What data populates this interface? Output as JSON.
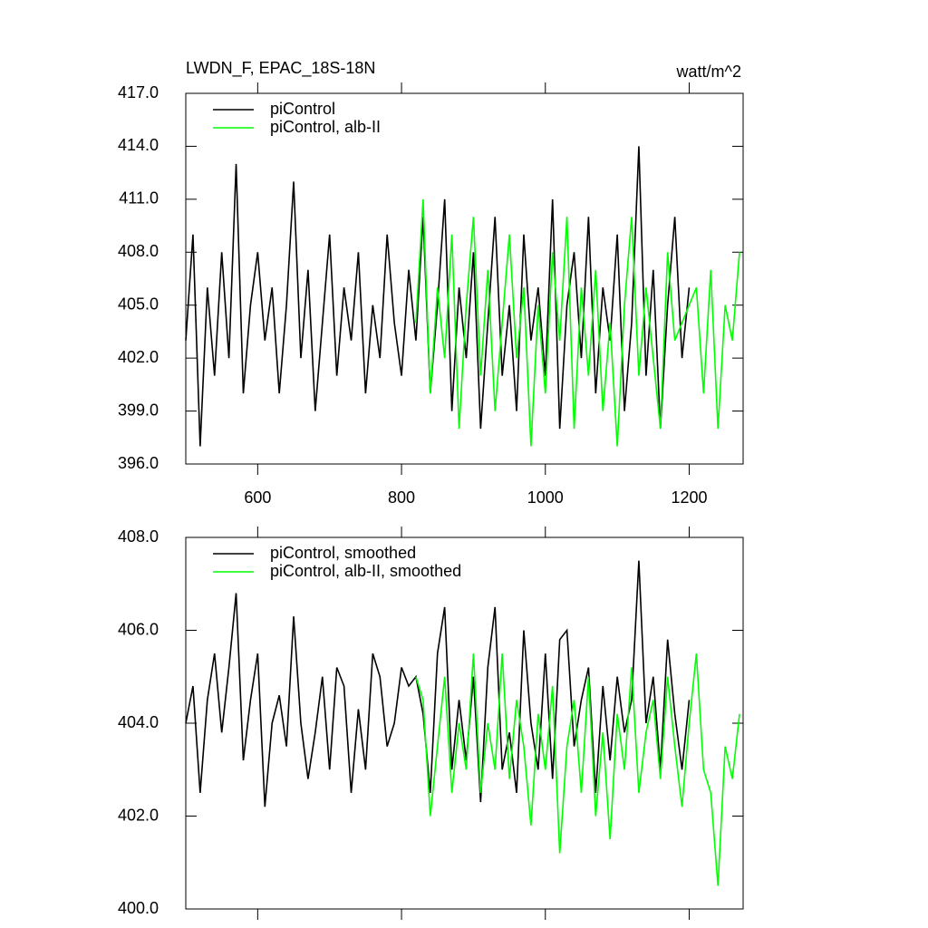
{
  "chart_data": [
    {
      "type": "line",
      "title": "LWDN_F, EPAC_18S-18N",
      "units": "watt/m^2",
      "x": [
        500,
        510,
        520,
        530,
        540,
        550,
        560,
        570,
        580,
        590,
        600,
        610,
        620,
        630,
        640,
        650,
        660,
        670,
        680,
        690,
        700,
        710,
        720,
        730,
        740,
        750,
        760,
        770,
        780,
        790,
        800,
        810,
        820,
        830,
        840,
        850,
        860,
        870,
        880,
        890,
        900,
        910,
        920,
        930,
        940,
        950,
        960,
        970,
        980,
        990,
        1000,
        1010,
        1020,
        1030,
        1040,
        1050,
        1060,
        1070,
        1080,
        1090,
        1100,
        1110,
        1120,
        1130,
        1140,
        1150,
        1160,
        1170,
        1180,
        1190,
        1200,
        1210,
        1220,
        1230,
        1240,
        1250,
        1260,
        1270
      ],
      "series": [
        {
          "name": "piControl",
          "color": "#000000",
          "values": [
            403,
            409,
            397,
            406,
            401,
            408,
            402,
            413,
            400,
            405,
            408,
            403,
            406,
            400,
            405,
            412,
            402,
            407,
            399,
            404,
            409,
            401,
            406,
            403,
            408,
            400,
            405,
            402,
            409,
            404,
            401,
            407,
            403,
            410,
            400,
            405,
            411,
            399,
            406,
            402,
            408,
            398,
            404,
            410,
            401,
            405,
            399,
            409,
            403,
            406,
            401,
            411,
            398,
            405,
            408,
            402,
            410,
            400,
            406,
            403,
            409,
            399,
            404,
            414,
            401,
            407,
            398,
            405,
            410,
            402,
            406,
            null,
            null,
            null,
            null,
            null,
            null,
            null
          ]
        },
        {
          "name": "piControl, alb-II",
          "color": "#00ff00",
          "values": [
            null,
            null,
            null,
            null,
            null,
            null,
            null,
            null,
            null,
            null,
            null,
            null,
            null,
            null,
            null,
            null,
            null,
            null,
            null,
            null,
            null,
            null,
            null,
            null,
            null,
            null,
            null,
            null,
            null,
            null,
            null,
            null,
            404,
            411,
            400,
            406,
            402,
            409,
            398,
            405,
            410,
            401,
            407,
            399,
            404,
            409,
            402,
            406,
            397,
            405,
            400,
            408,
            403,
            410,
            398,
            406,
            401,
            407,
            399,
            404,
            397,
            405,
            410,
            401,
            406,
            402,
            398,
            408,
            403,
            404,
            405,
            406,
            400,
            407,
            398,
            405,
            403,
            408
          ]
        }
      ],
      "xlim": [
        500,
        1275
      ],
      "xticks": [
        600,
        800,
        1000,
        1200
      ],
      "ylim": [
        396,
        417
      ],
      "yticks": [
        {
          "value": 396,
          "label": "396.0"
        },
        {
          "value": 399,
          "label": "399.0"
        },
        {
          "value": 402,
          "label": "402.0"
        },
        {
          "value": 405,
          "label": "405.0"
        },
        {
          "value": 408,
          "label": "408.0"
        },
        {
          "value": 411,
          "label": "411.0"
        },
        {
          "value": 414,
          "label": "414.0"
        },
        {
          "value": 417,
          "label": "417.0"
        }
      ]
    },
    {
      "type": "line",
      "x": [
        500,
        510,
        520,
        530,
        540,
        550,
        560,
        570,
        580,
        590,
        600,
        610,
        620,
        630,
        640,
        650,
        660,
        670,
        680,
        690,
        700,
        710,
        720,
        730,
        740,
        750,
        760,
        770,
        780,
        790,
        800,
        810,
        820,
        830,
        840,
        850,
        860,
        870,
        880,
        890,
        900,
        910,
        920,
        930,
        940,
        950,
        960,
        970,
        980,
        990,
        1000,
        1010,
        1020,
        1030,
        1040,
        1050,
        1060,
        1070,
        1080,
        1090,
        1100,
        1110,
        1120,
        1130,
        1140,
        1150,
        1160,
        1170,
        1180,
        1190,
        1200,
        1210,
        1220,
        1230,
        1240,
        1250,
        1260,
        1270
      ],
      "series": [
        {
          "name": "piControl, smoothed",
          "color": "#000000",
          "values": [
            404.0,
            404.8,
            402.5,
            404.5,
            405.5,
            403.8,
            405.2,
            406.8,
            403.2,
            404.5,
            405.5,
            402.2,
            404.0,
            404.6,
            403.5,
            406.3,
            404.0,
            402.8,
            403.8,
            405.0,
            403.0,
            405.2,
            404.8,
            402.5,
            404.3,
            403.0,
            405.5,
            405.0,
            403.5,
            404.0,
            405.2,
            404.8,
            405.0,
            404.2,
            402.5,
            405.5,
            406.5,
            403.0,
            404.5,
            403.2,
            405.0,
            402.3,
            405.2,
            406.5,
            403.0,
            403.8,
            402.5,
            406.0,
            404.0,
            403.0,
            405.5,
            402.8,
            405.8,
            406.0,
            403.5,
            404.5,
            405.2,
            402.5,
            404.8,
            403.2,
            405.0,
            403.8,
            404.5,
            407.5,
            404.0,
            405.0,
            403.0,
            405.8,
            404.2,
            403.0,
            404.5,
            null,
            null,
            null,
            null,
            null,
            null,
            null
          ]
        },
        {
          "name": "piControl, alb-II, smoothed",
          "color": "#00ff00",
          "values": [
            null,
            null,
            null,
            null,
            null,
            null,
            null,
            null,
            null,
            null,
            null,
            null,
            null,
            null,
            null,
            null,
            null,
            null,
            null,
            null,
            null,
            null,
            null,
            null,
            null,
            null,
            null,
            null,
            null,
            null,
            null,
            null,
            405.0,
            404.5,
            402.0,
            403.5,
            405.0,
            402.5,
            404.0,
            403.0,
            405.5,
            402.5,
            404.0,
            403.0,
            405.5,
            402.8,
            404.5,
            403.5,
            401.8,
            404.2,
            403.0,
            404.8,
            401.2,
            403.5,
            404.5,
            402.5,
            405.0,
            402.0,
            403.8,
            401.5,
            404.2,
            403.0,
            405.2,
            402.5,
            403.8,
            404.5,
            402.8,
            405.0,
            403.5,
            402.2,
            404.0,
            405.5,
            403.0,
            402.5,
            400.5,
            403.5,
            402.8,
            404.2
          ]
        }
      ],
      "xlim": [
        500,
        1275
      ],
      "xticks": [
        600,
        800,
        1000,
        1200
      ],
      "ylim": [
        400,
        408
      ],
      "yticks": [
        {
          "value": 400,
          "label": "400.0"
        },
        {
          "value": 402,
          "label": "402.0"
        },
        {
          "value": 404,
          "label": "404.0"
        },
        {
          "value": 406,
          "label": "406.0"
        },
        {
          "value": 408,
          "label": "408.0"
        }
      ]
    }
  ]
}
